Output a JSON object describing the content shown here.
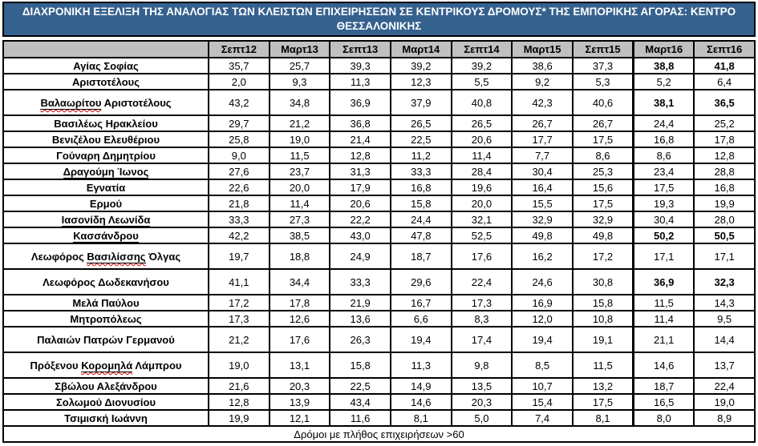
{
  "title": "ΔΙΑΧΡΟΝΙΚΗ ΕΞΕΛΙΞΗ ΤΗΣ ΑΝΑΛΟΓΙΑΣ ΤΩΝ ΚΛΕΙΣΤΩΝ ΕΠΙΧΕΙΡΗΣΕΩΝ ΣΕ ΚΕΝΤΡΙΚΟΥΣ ΔΡΟΜΟΥΣ* ΤΗΣ ΕΜΠΟΡΙΚΗΣ ΑΓΟΡΑΣ: ΚΕΝΤΡΟ ΘΕΣΣΑΛΟΝΙΚΗΣ",
  "colors": {
    "title_bg": "#35618E",
    "title_text": "#FFFFFF",
    "header_bg": "#C0C0C0",
    "border": "#000000",
    "spellcheck_squiggle": "#CC0000"
  },
  "table": {
    "columns": [
      "Σεπτ12",
      "Μαρτ13",
      "Σεπτ13",
      "Μαρτ14",
      "Σεπτ14",
      "Μαρτ15",
      "Σεπτ15",
      "Μαρτ16",
      "Σεπτ16"
    ],
    "rows": [
      {
        "parts": [
          {
            "text": "Αγίας Σοφίας"
          }
        ],
        "values": [
          "35,7",
          "25,7",
          "39,3",
          "39,2",
          "39,2",
          "38,6",
          "37,3",
          "38,8",
          "41,8"
        ],
        "bold_last_two": true,
        "tall": false
      },
      {
        "parts": [
          {
            "text": "Αριστοτέλους"
          }
        ],
        "values": [
          "2,0",
          "9,3",
          "11,3",
          "12,3",
          "5,5",
          "9,2",
          "5,3",
          "5,2",
          "6,4"
        ],
        "bold_last_two": false,
        "tall": false
      },
      {
        "parts": [
          {
            "text": "Βαλαωρίτου",
            "underline": true,
            "squiggle": true
          },
          {
            "text": " Αριστοτέλους"
          }
        ],
        "values": [
          "43,2",
          "34,8",
          "36,9",
          "37,9",
          "40,8",
          "42,3",
          "40,6",
          "38,1",
          "36,5"
        ],
        "bold_last_two": true,
        "tall": true
      },
      {
        "parts": [
          {
            "text": "Βασιλέως Ηρακλείου"
          }
        ],
        "values": [
          "29,7",
          "21,2",
          "36,8",
          "26,5",
          "26,5",
          "26,7",
          "26,7",
          "24,4",
          "25,2"
        ],
        "bold_last_two": false,
        "tall": false
      },
      {
        "parts": [
          {
            "text": "Βενιζέλου Ελευθέριου"
          }
        ],
        "values": [
          "25,8",
          "19,0",
          "21,4",
          "22,5",
          "20,6",
          "17,7",
          "17,5",
          "16,8",
          "17,8"
        ],
        "bold_last_two": false,
        "tall": false
      },
      {
        "parts": [
          {
            "text": "Γούναρη Δημητρίου"
          }
        ],
        "values": [
          "9,0",
          "11,5",
          "12,8",
          "11,2",
          "11,4",
          "7,7",
          "8,6",
          "8,6",
          "12,8"
        ],
        "bold_last_two": false,
        "tall": false
      },
      {
        "parts": [
          {
            "text": "Δραγούμη ",
            "underline": true
          },
          {
            "text": "Ίωνος",
            "underline": true,
            "squiggle": true
          }
        ],
        "values": [
          "27,6",
          "23,7",
          "31,3",
          "33,3",
          "28,4",
          "30,4",
          "25,3",
          "23,4",
          "28,8"
        ],
        "bold_last_two": false,
        "tall": false
      },
      {
        "parts": [
          {
            "text": "Εγνατία"
          }
        ],
        "values": [
          "22,6",
          "20,0",
          "17,9",
          "16,8",
          "19,6",
          "16,4",
          "15,6",
          "17,5",
          "16,8"
        ],
        "bold_last_two": false,
        "tall": false
      },
      {
        "parts": [
          {
            "text": "Ερμού"
          }
        ],
        "values": [
          "21,8",
          "11,4",
          "20,6",
          "15,8",
          "20,0",
          "15,5",
          "17,5",
          "19,3",
          "19,9"
        ],
        "bold_last_two": false,
        "tall": false
      },
      {
        "parts": [
          {
            "text": "Ιασονίδη",
            "underline": true,
            "squiggle": true
          },
          {
            "text": " Λεωνίδα",
            "underline": true
          }
        ],
        "values": [
          "33,3",
          "27,3",
          "22,2",
          "24,4",
          "32,1",
          "32,9",
          "32,9",
          "30,4",
          "28,0"
        ],
        "bold_last_two": false,
        "tall": false
      },
      {
        "parts": [
          {
            "text": "Κασσάνδρου",
            "underline": true,
            "squiggle": true
          }
        ],
        "values": [
          "42,2",
          "38,5",
          "43,0",
          "47,8",
          "52,5",
          "49,8",
          "49,8",
          "50,2",
          "50,5"
        ],
        "bold_last_two": true,
        "tall": false
      },
      {
        "parts": [
          {
            "text": "Λεωφόρος "
          },
          {
            "text": "Βασιλίσσης",
            "underline": true,
            "squiggle": true
          },
          {
            "text": " Όλγας"
          }
        ],
        "values": [
          "19,7",
          "18,8",
          "24,9",
          "18,7",
          "17,6",
          "16,2",
          "17,2",
          "17,1",
          "17,1"
        ],
        "bold_last_two": false,
        "tall": true
      },
      {
        "parts": [
          {
            "text": "Λεωφόρος Δωδεκανήσου"
          }
        ],
        "values": [
          "41,1",
          "34,4",
          "33,3",
          "29,6",
          "22,4",
          "24,6",
          "30,8",
          "36,9",
          "32,3"
        ],
        "bold_last_two": true,
        "tall": true
      },
      {
        "parts": [
          {
            "text": "Μελά Παύλου"
          }
        ],
        "values": [
          "17,2",
          "17,8",
          "21,9",
          "16,7",
          "17,3",
          "16,9",
          "15,8",
          "11,5",
          "14,3"
        ],
        "bold_last_two": false,
        "tall": false
      },
      {
        "parts": [
          {
            "text": "Μητροπόλεως"
          }
        ],
        "values": [
          "17,3",
          "12,6",
          "13,6",
          "6,6",
          "8,3",
          "12,0",
          "10,8",
          "11,4",
          "9,5"
        ],
        "bold_last_two": false,
        "tall": false
      },
      {
        "parts": [
          {
            "text": "Παλαιών Πατρών Γερμανού"
          }
        ],
        "values": [
          "21,2",
          "17,6",
          "26,3",
          "19,4",
          "17,4",
          "19,4",
          "19,1",
          "21,1",
          "14,4"
        ],
        "bold_last_two": false,
        "tall": true
      },
      {
        "parts": [
          {
            "text": "Πρόξενου "
          },
          {
            "text": "Κορομηλά",
            "underline": true,
            "squiggle": true
          },
          {
            "text": " Λάμπρου"
          }
        ],
        "values": [
          "19,0",
          "13,1",
          "15,8",
          "11,3",
          "9,8",
          "8,5",
          "11,5",
          "14,6",
          "13,7"
        ],
        "bold_last_two": false,
        "tall": true
      },
      {
        "parts": [
          {
            "text": "Σβώλου Αλεξάνδρου"
          }
        ],
        "values": [
          "21,6",
          "20,3",
          "22,5",
          "14,9",
          "13,5",
          "10,7",
          "13,2",
          "18,7",
          "22,4"
        ],
        "bold_last_two": false,
        "tall": false
      },
      {
        "parts": [
          {
            "text": "Σολωμού Διονυσίου"
          }
        ],
        "values": [
          "12,8",
          "13,9",
          "43,4",
          "14,6",
          "20,3",
          "15,4",
          "17,5",
          "16,5",
          "19,0"
        ],
        "bold_last_two": false,
        "tall": false
      },
      {
        "parts": [
          {
            "text": "Τσιμισκή Ιωάννη"
          }
        ],
        "values": [
          "19,9",
          "12,1",
          "11,6",
          "8,1",
          "5,0",
          "7,4",
          "8,1",
          "8,0",
          "8,9"
        ],
        "bold_last_two": false,
        "tall": false
      }
    ],
    "footnote": "Δρόμοι με πλήθος επιχειρήσεων >60"
  }
}
